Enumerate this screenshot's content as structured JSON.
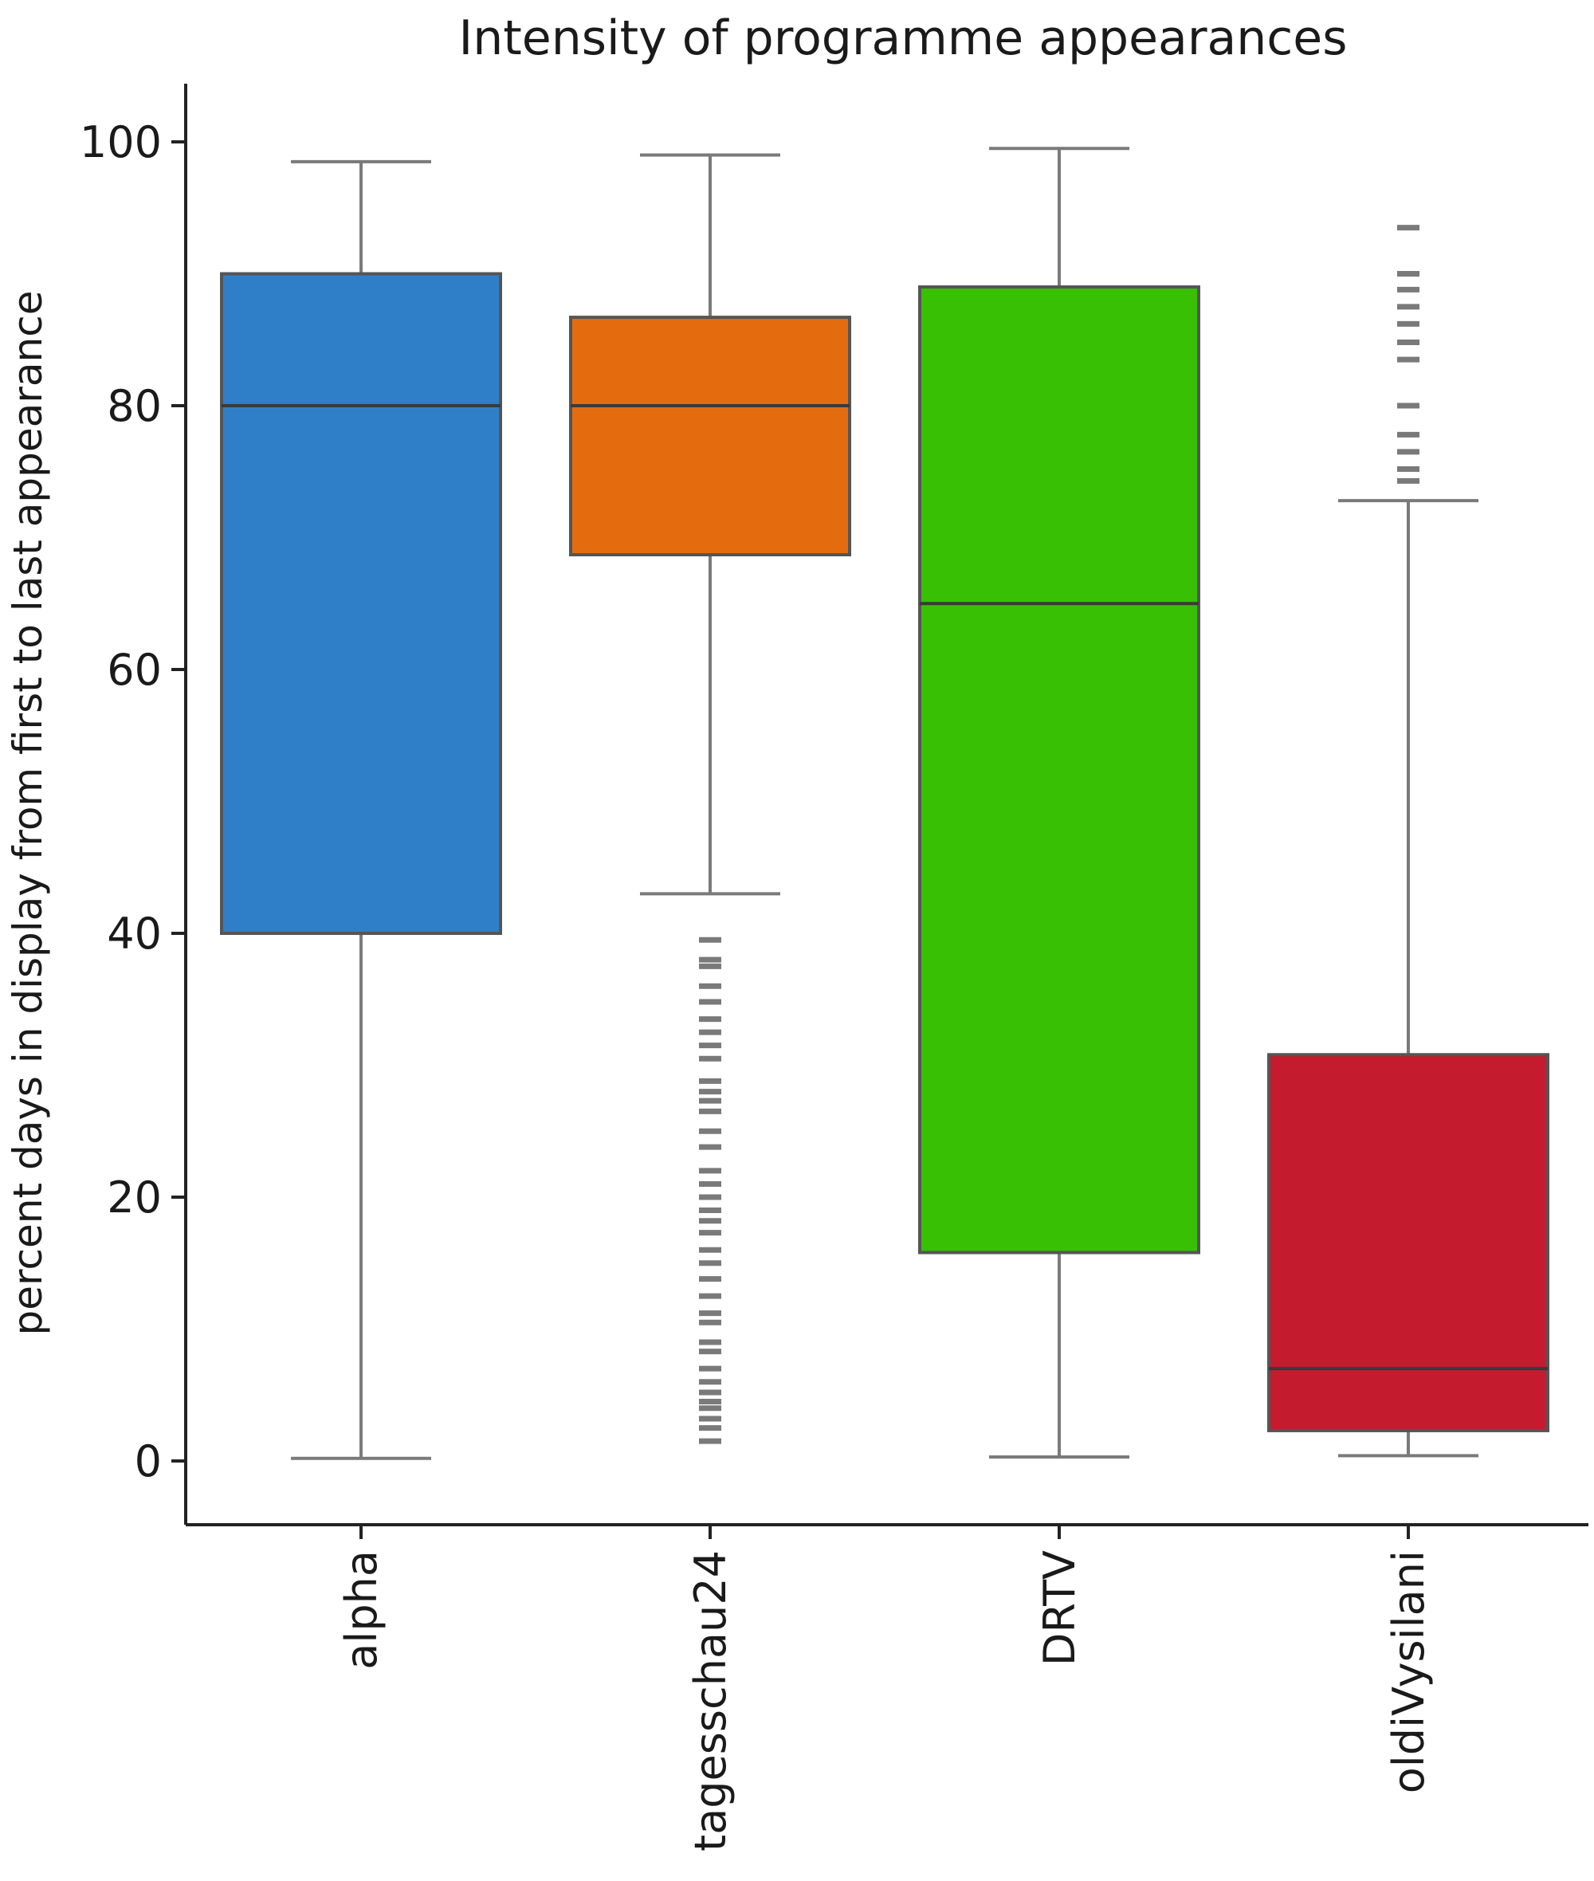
{
  "chart_data": {
    "type": "box",
    "title": "Intensity of programme appearances",
    "ylabel": "percent days in display from first to last appearance",
    "xlabel": "",
    "ylim": [
      -5,
      105
    ],
    "yticks": [
      0,
      20,
      40,
      60,
      80,
      100
    ],
    "categories": [
      "alpha",
      "tagesschau24",
      "DRTV",
      "oldiVysilani"
    ],
    "boxes": [
      {
        "category": "alpha",
        "color": "#2f7fc8",
        "whisker_low": 0.2,
        "q1": 40,
        "median": 80,
        "q3": 90,
        "whisker_high": 98.5,
        "outliers": []
      },
      {
        "category": "tagesschau24",
        "color": "#e56c0e",
        "whisker_low": 43,
        "q1": 68.7,
        "median": 80,
        "q3": 86.7,
        "whisker_high": 99,
        "outliers": [
          1.5,
          2.5,
          3.2,
          4.0,
          4.5,
          5.2,
          6.0,
          7.0,
          8.3,
          9.0,
          10.5,
          11.2,
          12.5,
          13.8,
          15.0,
          16.0,
          17.3,
          18.2,
          19.0,
          20.0,
          21.0,
          22.0,
          23.8,
          25.0,
          26.5,
          27.3,
          28.0,
          28.8,
          30.5,
          31.5,
          32.5,
          33.5,
          34.8,
          36.0,
          37.5,
          38.0,
          39.5
        ]
      },
      {
        "category": "DRTV",
        "color": "#38c004",
        "whisker_low": 0.3,
        "q1": 15.8,
        "median": 65,
        "q3": 89,
        "whisker_high": 99.5,
        "outliers": []
      },
      {
        "category": "oldiVysilani",
        "color": "#c51b2e",
        "whisker_low": 0.4,
        "q1": 2.3,
        "median": 7,
        "q3": 30.8,
        "whisker_high": 72.8,
        "outliers": [
          74.3,
          75.2,
          76.5,
          77.8,
          80.0,
          83.5,
          84.8,
          86.2,
          87.5,
          88.8,
          90.0,
          93.5
        ]
      }
    ],
    "grid": false,
    "legend": "none"
  }
}
